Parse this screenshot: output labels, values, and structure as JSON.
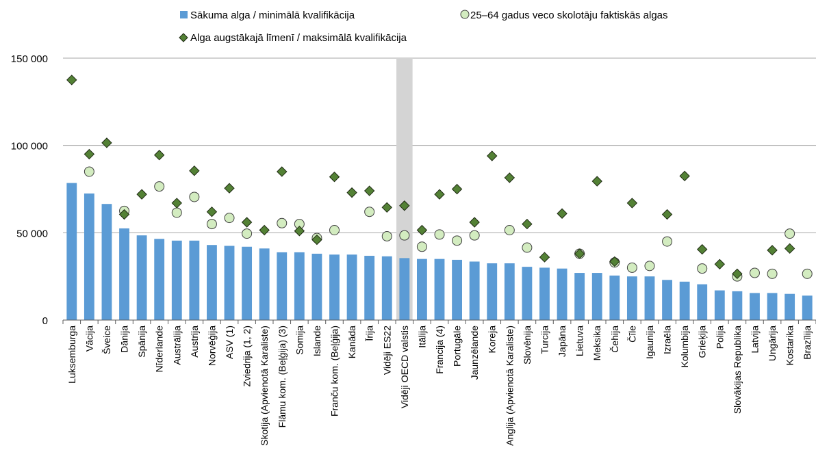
{
  "chart_data": {
    "type": "bar",
    "y_axis": {
      "ylim": [
        0,
        150000
      ],
      "ticks": [
        0,
        50000,
        100000,
        150000
      ],
      "tick_labels": [
        "0",
        "50 000",
        "100 000",
        "150 000"
      ],
      "grid": true
    },
    "categories": [
      "Luksemburga",
      "Vācija",
      "Šveice",
      "Dānija",
      "Spānija",
      "Nīderlande",
      "Austrālija",
      "Austrija",
      "Norvēģija",
      "ASV (1)",
      "Zviedrija (1, 2)",
      "Skotija (Apvienotā Karaliste)",
      "Flāmu kom. (Beļģija) (3)",
      "Somija",
      "Islande",
      "Franču kom. (Beļģija)",
      "Kanāda",
      "Īrija",
      "Vidēji ES22",
      "Vidēji OECD valstis",
      "Itālija",
      "Francija (4)",
      "Portugāle",
      "Jaunzēlande",
      "Koreja",
      "Anglija (Apvienotā Karaliste)",
      "Slovēnija",
      "Turcija",
      "Japāna",
      "Lietuva",
      "Meksika",
      "Čehija",
      "Čīle",
      "Igaunija",
      "Izraēla",
      "Kolumbija",
      "Grieķija",
      "Polija",
      "Slovākijas Republika",
      "Latvija",
      "Ungārija",
      "Kostarika",
      "Brazīlija"
    ],
    "highlighted_category": "Vidēji OECD valstis",
    "series": [
      {
        "name": "Sākuma alga / minimālā kvalifikācija",
        "marker": "bar",
        "color": "#5b9bd5",
        "values": [
          78500,
          72500,
          66500,
          52500,
          48500,
          46500,
          45500,
          45500,
          43000,
          42500,
          42000,
          41000,
          38800,
          38800,
          38000,
          37500,
          37500,
          36800,
          36500,
          35500,
          35000,
          35000,
          34500,
          33500,
          32500,
          32500,
          30500,
          30000,
          29500,
          27000,
          27000,
          25500,
          25000,
          25000,
          23000,
          22000,
          20500,
          17000,
          16500,
          15500,
          15500,
          15000,
          14000
        ]
      },
      {
        "name": "25–64 gadus veco skolotāju faktiskās algas",
        "marker": "circle",
        "color": "#d3ecc0",
        "values": [
          null,
          85000,
          null,
          62500,
          null,
          76500,
          61500,
          70500,
          55000,
          58500,
          49500,
          null,
          55500,
          55000,
          47000,
          51500,
          null,
          62000,
          48000,
          48500,
          42000,
          49000,
          45500,
          48500,
          null,
          51500,
          41500,
          null,
          null,
          38000,
          null,
          33000,
          30000,
          31000,
          45000,
          null,
          29500,
          null,
          25000,
          27000,
          26500,
          49500,
          26500
        ]
      },
      {
        "name": "Alga augstākajā līmenī / maksimālā kvalifikācija",
        "marker": "diamond",
        "color": "#538135",
        "values": [
          137500,
          95000,
          101500,
          60500,
          72000,
          94500,
          67000,
          85500,
          62000,
          75500,
          56000,
          51500,
          85000,
          51000,
          46000,
          82000,
          73000,
          74000,
          64500,
          65500,
          51500,
          72000,
          75000,
          56000,
          94000,
          81500,
          55000,
          36000,
          61000,
          38000,
          79500,
          33500,
          67000,
          null,
          60500,
          82500,
          40500,
          32000,
          26500,
          null,
          40000,
          41000,
          null
        ]
      }
    ]
  }
}
